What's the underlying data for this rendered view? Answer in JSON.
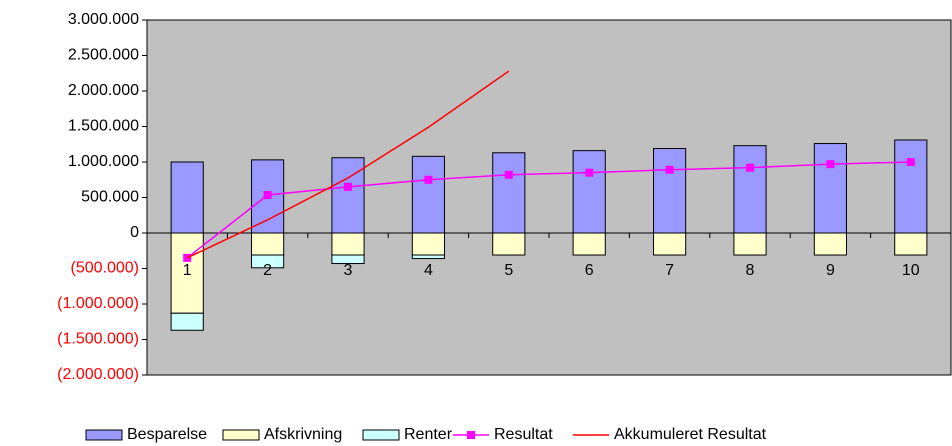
{
  "chart_data": {
    "type": "bar",
    "categories": [
      "1",
      "2",
      "3",
      "4",
      "5",
      "6",
      "7",
      "8",
      "9",
      "10"
    ],
    "series": [
      {
        "name": "Besparelse",
        "type": "bar",
        "color": "#9999ff",
        "values": [
          1000000,
          1030000,
          1060000,
          1080000,
          1130000,
          1160000,
          1190000,
          1230000,
          1260000,
          1310000
        ]
      },
      {
        "name": "Afskrivning",
        "type": "bar",
        "color": "#ffffcc",
        "values": [
          -1130000,
          -310000,
          -310000,
          -310000,
          -310000,
          -310000,
          -310000,
          -310000,
          -310000,
          -310000
        ]
      },
      {
        "name": "Renter",
        "type": "bar",
        "color": "#ccffff",
        "values": [
          -240000,
          -180000,
          -120000,
          -50000,
          0,
          0,
          0,
          0,
          0,
          0
        ]
      },
      {
        "name": "Resultat",
        "type": "line",
        "color": "#ff00ff",
        "marker": "square",
        "values": [
          -350000,
          535000,
          650000,
          750000,
          820000,
          850000,
          890000,
          920000,
          970000,
          1000000
        ]
      },
      {
        "name": "Akkumuleret Resultat",
        "type": "line",
        "color": "#ff0000",
        "values": [
          -350000,
          185000,
          775000,
          1490000,
          2280000,
          null,
          null,
          null,
          null,
          null
        ]
      }
    ],
    "ylim": [
      -2000000,
      3000000
    ],
    "yticks": [
      {
        "value": -2000000,
        "label": "(2.000.000)"
      },
      {
        "value": -1500000,
        "label": "(1.500.000)"
      },
      {
        "value": -1000000,
        "label": "(1.000.000)"
      },
      {
        "value": -500000,
        "label": "(500.000)"
      },
      0,
      {
        "value": 500000,
        "label": "500.000"
      },
      {
        "value": 1000000,
        "label": "1.000.000"
      },
      {
        "value": 1500000,
        "label": "1.500.000"
      },
      {
        "value": 2000000,
        "label": "2.000.000"
      },
      {
        "value": 2500000,
        "label": "2.500.000"
      },
      {
        "value": 3000000,
        "label": "3.000.000"
      }
    ],
    "negative_tick_color": "#ff0000",
    "plot_background": "#c0c0c0",
    "legend": "bottom"
  }
}
